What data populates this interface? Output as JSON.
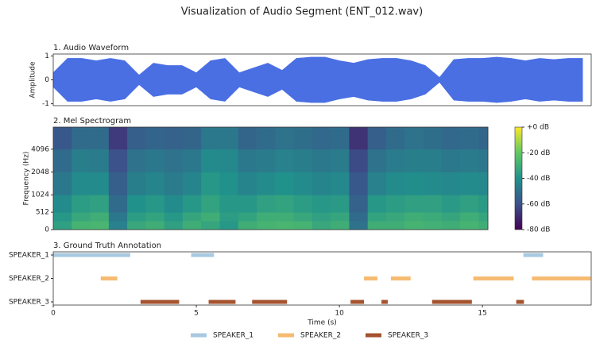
{
  "title": "Visualization of Audio Segment (ENT_012.wav)",
  "chart_data": [
    {
      "type": "area",
      "title": "1. Audio Waveform",
      "ylabel": "Amplitude",
      "color": "#4a6fe3",
      "x": [
        0,
        0.5,
        1,
        1.5,
        2,
        2.5,
        3,
        3.5,
        4,
        4.5,
        5,
        5.5,
        6,
        6.5,
        7,
        7.5,
        8,
        8.5,
        9,
        9.5,
        10,
        10.5,
        11,
        11.5,
        12,
        12.5,
        13,
        13.5,
        14,
        14.5,
        15,
        15.5,
        16,
        16.5,
        17,
        17.5,
        18,
        18.5
      ],
      "upper": [
        0.3,
        0.9,
        0.9,
        0.8,
        0.9,
        0.8,
        0.2,
        0.7,
        0.6,
        0.6,
        0.3,
        0.8,
        0.9,
        0.3,
        0.5,
        0.7,
        0.4,
        0.9,
        0.95,
        0.95,
        0.8,
        0.7,
        0.85,
        0.9,
        0.9,
        0.8,
        0.6,
        0.1,
        0.85,
        0.9,
        0.9,
        0.95,
        0.9,
        0.8,
        0.9,
        0.85,
        0.9,
        0.9
      ],
      "lower": [
        -0.3,
        -0.9,
        -0.9,
        -0.8,
        -0.9,
        -0.8,
        -0.2,
        -0.7,
        -0.6,
        -0.6,
        -0.3,
        -0.8,
        -0.9,
        -0.3,
        -0.5,
        -0.7,
        -0.4,
        -0.9,
        -0.95,
        -0.95,
        -0.8,
        -0.7,
        -0.85,
        -0.9,
        -0.9,
        -0.8,
        -0.6,
        -0.1,
        -0.85,
        -0.9,
        -0.9,
        -0.95,
        -0.9,
        -0.8,
        -0.9,
        -0.85,
        -0.9,
        -0.9
      ],
      "xlim": [
        0,
        18.8
      ],
      "ylim": [
        -1.08,
        1.08
      ],
      "yticks": [
        -1,
        0,
        1
      ]
    },
    {
      "type": "heatmap",
      "title": "2. Mel Spectrogram",
      "ylabel": "Frequency (Hz)",
      "colormap": "viridis",
      "yscale": "mel",
      "x_edges": [
        0,
        0.8,
        1.6,
        2.4,
        3.2,
        4.0,
        4.8,
        5.6,
        6.4,
        7.2,
        8.0,
        8.8,
        9.6,
        10.4,
        11.2,
        12.0,
        12.8,
        13.6,
        14.4,
        15.2,
        16.0,
        16.8,
        17.6,
        18.4,
        18.8
      ],
      "y_edges": [
        0,
        256,
        512,
        1024,
        2048,
        4096,
        8000
      ],
      "values": [
        [
          -35,
          -28,
          -27,
          -45,
          -32,
          -30,
          -35,
          -30,
          -33,
          -38,
          -30,
          -28,
          -27,
          -28,
          -32,
          -30,
          -50,
          -30,
          -30,
          -28,
          -29,
          -30,
          -28,
          -30
        ],
        [
          -38,
          -32,
          -30,
          -48,
          -36,
          -34,
          -38,
          -33,
          -30,
          -36,
          -34,
          -30,
          -30,
          -32,
          -35,
          -33,
          -52,
          -34,
          -32,
          -30,
          -31,
          -33,
          -30,
          -33
        ],
        [
          -42,
          -36,
          -35,
          -52,
          -40,
          -38,
          -42,
          -38,
          -34,
          -38,
          -38,
          -35,
          -34,
          -36,
          -38,
          -37,
          -55,
          -38,
          -36,
          -35,
          -35,
          -37,
          -35,
          -37
        ],
        [
          -48,
          -42,
          -42,
          -56,
          -46,
          -44,
          -47,
          -44,
          -38,
          -40,
          -44,
          -42,
          -40,
          -42,
          -44,
          -43,
          -58,
          -45,
          -42,
          -41,
          -42,
          -43,
          -42,
          -43
        ],
        [
          -52,
          -46,
          -47,
          -60,
          -50,
          -48,
          -50,
          -48,
          -42,
          -43,
          -48,
          -47,
          -45,
          -46,
          -48,
          -47,
          -62,
          -50,
          -47,
          -46,
          -46,
          -48,
          -47,
          -48
        ],
        [
          -58,
          -52,
          -52,
          -66,
          -56,
          -54,
          -55,
          -54,
          -48,
          -48,
          -54,
          -52,
          -50,
          -51,
          -53,
          -52,
          -68,
          -56,
          -52,
          -50,
          -51,
          -53,
          -52,
          -54
        ]
      ],
      "xlim": [
        0,
        18.8
      ],
      "ylim": [
        0,
        8000
      ],
      "yticks": [
        0,
        512,
        1024,
        2048,
        4096
      ],
      "clim": [
        -80,
        0
      ],
      "cticks": [
        {
          "value": 0,
          "label": "+0 dB"
        },
        {
          "value": -20,
          "label": "-20 dB"
        },
        {
          "value": -40,
          "label": "-40 dB"
        },
        {
          "value": -60,
          "label": "-60 dB"
        },
        {
          "value": -80,
          "label": "-80 dB"
        }
      ]
    },
    {
      "type": "timeline",
      "title": "3. Ground Truth Annotation",
      "xlabel": "Time (s)",
      "legend": "lower center",
      "categories": [
        "SPEAKER_1",
        "SPEAKER_2",
        "SPEAKER_3"
      ],
      "series": [
        {
          "name": "SPEAKER_1",
          "color": "#a9c9e1",
          "segments": [
            [
              0,
              2.69
            ],
            [
              4.82,
              5.62
            ],
            [
              16.43,
              17.12
            ]
          ]
        },
        {
          "name": "SPEAKER_2",
          "color": "#f6bb72",
          "segments": [
            [
              1.66,
              2.24
            ],
            [
              10.86,
              11.33
            ],
            [
              11.8,
              12.49
            ],
            [
              14.68,
              16.09
            ],
            [
              16.73,
              18.78
            ]
          ]
        },
        {
          "name": "SPEAKER_3",
          "color": "#a5532f",
          "segments": [
            [
              3.05,
              4.4
            ],
            [
              5.43,
              6.37
            ],
            [
              6.95,
              8.17
            ],
            [
              10.39,
              10.86
            ],
            [
              11.47,
              11.69
            ],
            [
              13.24,
              14.63
            ],
            [
              16.18,
              16.45
            ]
          ]
        }
      ],
      "xlim": [
        0,
        18.8
      ],
      "xticks": [
        0,
        5,
        10,
        15
      ]
    }
  ]
}
